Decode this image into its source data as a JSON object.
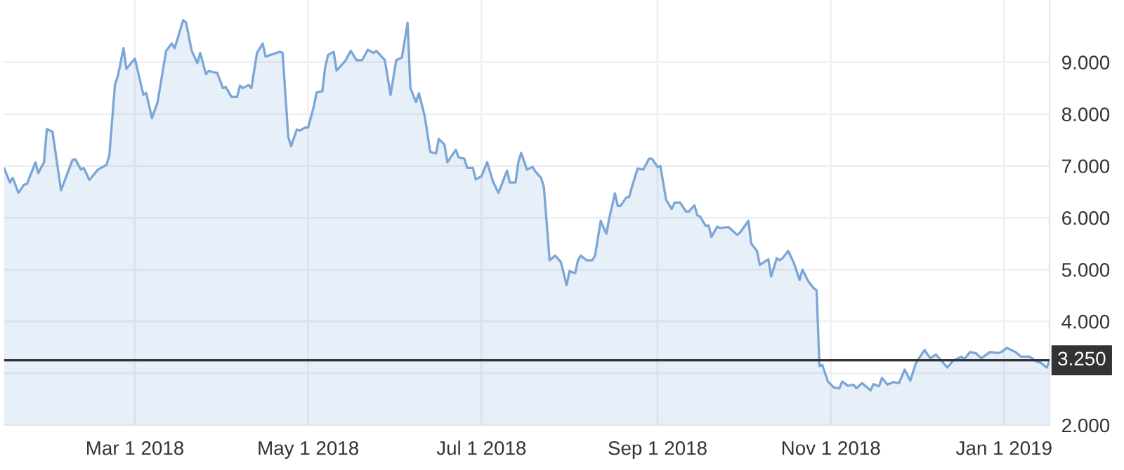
{
  "chart_data": {
    "type": "area",
    "x": [
      "2018-01-14",
      "2018-01-16",
      "2018-01-17",
      "2018-01-19",
      "2018-01-21",
      "2018-01-22",
      "2018-01-25",
      "2018-01-26",
      "2018-01-28",
      "2018-01-29",
      "2018-01-31",
      "2018-02-03",
      "2018-02-07",
      "2018-02-08",
      "2018-02-10",
      "2018-02-11",
      "2018-02-13",
      "2018-02-16",
      "2018-02-19",
      "2018-02-20",
      "2018-02-22",
      "2018-02-23",
      "2018-02-25",
      "2018-02-26",
      "2018-03-01",
      "2018-03-04",
      "2018-03-05",
      "2018-03-07",
      "2018-03-09",
      "2018-03-12",
      "2018-03-14",
      "2018-03-15",
      "2018-03-18",
      "2018-03-19",
      "2018-03-21",
      "2018-03-23",
      "2018-03-24",
      "2018-03-26",
      "2018-03-27",
      "2018-03-30",
      "2018-04-01",
      "2018-04-02",
      "2018-04-04",
      "2018-04-06",
      "2018-04-07",
      "2018-04-08",
      "2018-04-10",
      "2018-04-11",
      "2018-04-13",
      "2018-04-15",
      "2018-04-16",
      "2018-04-21",
      "2018-04-22",
      "2018-04-24",
      "2018-04-25",
      "2018-04-27",
      "2018-04-28",
      "2018-04-30",
      "2018-05-01",
      "2018-05-03",
      "2018-05-04",
      "2018-05-06",
      "2018-05-07",
      "2018-05-08",
      "2018-05-10",
      "2018-05-11",
      "2018-05-14",
      "2018-05-16",
      "2018-05-18",
      "2018-05-20",
      "2018-05-22",
      "2018-05-24",
      "2018-05-25",
      "2018-05-28",
      "2018-05-30",
      "2018-06-01",
      "2018-06-03",
      "2018-06-05",
      "2018-06-06",
      "2018-06-08",
      "2018-06-09",
      "2018-06-11",
      "2018-06-13",
      "2018-06-15",
      "2018-06-16",
      "2018-06-18",
      "2018-06-19",
      "2018-06-22",
      "2018-06-23",
      "2018-06-25",
      "2018-06-26",
      "2018-06-28",
      "2018-06-29",
      "2018-07-01",
      "2018-07-03",
      "2018-07-05",
      "2018-07-07",
      "2018-07-08",
      "2018-07-10",
      "2018-07-11",
      "2018-07-13",
      "2018-07-14",
      "2018-07-15",
      "2018-07-17",
      "2018-07-19",
      "2018-07-20",
      "2018-07-22",
      "2018-07-23",
      "2018-07-25",
      "2018-07-27",
      "2018-07-29",
      "2018-07-31",
      "2018-08-01",
      "2018-08-03",
      "2018-08-04",
      "2018-08-05",
      "2018-08-07",
      "2018-08-09",
      "2018-08-10",
      "2018-08-12",
      "2018-08-14",
      "2018-08-15",
      "2018-08-17",
      "2018-08-18",
      "2018-08-19",
      "2018-08-21",
      "2018-08-22",
      "2018-08-23",
      "2018-08-25",
      "2018-08-27",
      "2018-08-29",
      "2018-08-30",
      "2018-09-01",
      "2018-09-02",
      "2018-09-04",
      "2018-09-06",
      "2018-09-07",
      "2018-09-09",
      "2018-09-11",
      "2018-09-12",
      "2018-09-14",
      "2018-09-15",
      "2018-09-16",
      "2018-09-18",
      "2018-09-19",
      "2018-09-20",
      "2018-09-22",
      "2018-09-23",
      "2018-09-26",
      "2018-09-29",
      "2018-09-30",
      "2018-10-03",
      "2018-10-04",
      "2018-10-06",
      "2018-10-07",
      "2018-10-10",
      "2018-10-11",
      "2018-10-13",
      "2018-10-14",
      "2018-10-15",
      "2018-10-17",
      "2018-10-19",
      "2018-10-21",
      "2018-10-22",
      "2018-10-24",
      "2018-10-26",
      "2018-10-27",
      "2018-10-28",
      "2018-10-29",
      "2018-10-31",
      "2018-11-02",
      "2018-11-04",
      "2018-11-05",
      "2018-11-07",
      "2018-11-09",
      "2018-11-10",
      "2018-11-12",
      "2018-11-15",
      "2018-11-16",
      "2018-11-18",
      "2018-11-19",
      "2018-11-21",
      "2018-11-23",
      "2018-11-25",
      "2018-11-27",
      "2018-11-29",
      "2018-12-01",
      "2018-12-04",
      "2018-12-06",
      "2018-12-08",
      "2018-12-10",
      "2018-12-12",
      "2018-12-14",
      "2018-12-17",
      "2018-12-18",
      "2018-12-20",
      "2018-12-22",
      "2018-12-24",
      "2018-12-27",
      "2018-12-30",
      "2018-12-31",
      "2019-01-02",
      "2019-01-05",
      "2019-01-07",
      "2019-01-10",
      "2019-01-12",
      "2019-01-14",
      "2019-01-16",
      "2019-01-17"
    ],
    "series": [
      {
        "color": "#7ba7d7",
        "values": [
          6.95,
          6.68,
          6.77,
          6.48,
          6.64,
          6.65,
          7.07,
          6.86,
          7.07,
          7.71,
          7.66,
          6.53,
          7.11,
          7.13,
          6.93,
          6.96,
          6.73,
          6.93,
          7.02,
          7.2,
          8.57,
          8.73,
          9.27,
          8.87,
          9.07,
          8.37,
          8.41,
          7.92,
          8.23,
          9.22,
          9.36,
          9.27,
          9.81,
          9.77,
          9.22,
          8.98,
          9.18,
          8.77,
          8.83,
          8.79,
          8.5,
          8.52,
          8.33,
          8.33,
          8.55,
          8.5,
          8.56,
          8.5,
          9.18,
          9.36,
          9.11,
          9.2,
          9.18,
          7.56,
          7.38,
          7.7,
          7.68,
          7.74,
          7.74,
          8.15,
          8.42,
          8.44,
          8.91,
          9.14,
          9.2,
          8.84,
          9.02,
          9.22,
          9.04,
          9.04,
          9.24,
          9.18,
          9.22,
          9.04,
          8.37,
          9.04,
          9.09,
          9.76,
          8.5,
          8.23,
          8.4,
          7.97,
          7.27,
          7.24,
          7.52,
          7.41,
          7.07,
          7.31,
          7.16,
          7.14,
          6.96,
          6.96,
          6.74,
          6.8,
          7.07,
          6.71,
          6.48,
          6.62,
          6.91,
          6.68,
          6.68,
          7.07,
          7.25,
          6.93,
          6.98,
          6.89,
          6.77,
          6.59,
          5.18,
          5.27,
          5.14,
          4.7,
          4.97,
          4.93,
          5.18,
          5.27,
          5.18,
          5.18,
          5.27,
          5.94,
          5.69,
          5.99,
          6.47,
          6.23,
          6.23,
          6.39,
          6.4,
          6.6,
          6.95,
          6.93,
          7.14,
          7.14,
          6.98,
          7.0,
          6.35,
          6.17,
          6.29,
          6.29,
          6.12,
          6.12,
          6.24,
          6.05,
          6.02,
          5.84,
          5.85,
          5.63,
          5.83,
          5.8,
          5.82,
          5.67,
          5.71,
          5.94,
          5.5,
          5.36,
          5.09,
          5.2,
          4.87,
          5.22,
          5.18,
          5.22,
          5.36,
          5.13,
          4.8,
          5.0,
          4.78,
          4.64,
          4.6,
          3.14,
          3.16,
          2.84,
          2.73,
          2.71,
          2.84,
          2.76,
          2.78,
          2.71,
          2.81,
          2.67,
          2.79,
          2.75,
          2.91,
          2.78,
          2.83,
          2.81,
          3.07,
          2.86,
          3.2,
          3.45,
          3.29,
          3.36,
          3.24,
          3.11,
          3.24,
          3.32,
          3.27,
          3.41,
          3.39,
          3.29,
          3.41,
          3.39,
          3.41,
          3.49,
          3.41,
          3.32,
          3.32,
          3.24,
          3.2,
          3.11,
          3.24
        ]
      }
    ],
    "xlim": [
      "2018-01-14",
      "2019-01-17"
    ],
    "xticks": [
      {
        "value": "2018-03-01",
        "label": "Mar 1 2018"
      },
      {
        "value": "2018-05-01",
        "label": "May 1 2018"
      },
      {
        "value": "2018-07-01",
        "label": "Jul 1 2018"
      },
      {
        "value": "2018-09-01",
        "label": "Sep 1 2018"
      },
      {
        "value": "2018-11-01",
        "label": "Nov 1 2018"
      },
      {
        "value": "2019-01-01",
        "label": "Jan 1 2019"
      }
    ],
    "ylim": [
      2,
      10.2
    ],
    "yticks": [
      {
        "value": 2,
        "label": "2.000"
      },
      {
        "value": 3,
        "label": null
      },
      {
        "value": 4,
        "label": "4.000"
      },
      {
        "value": 5,
        "label": "5.000"
      },
      {
        "value": 6,
        "label": "6.000"
      },
      {
        "value": 7,
        "label": "7.000"
      },
      {
        "value": 8,
        "label": "8.000"
      },
      {
        "value": 9,
        "label": "9.000"
      }
    ],
    "ref_lines": [
      {
        "axis": "y",
        "value": 3.25,
        "label": "3.250",
        "color": "#333333"
      }
    ],
    "grid": true
  }
}
